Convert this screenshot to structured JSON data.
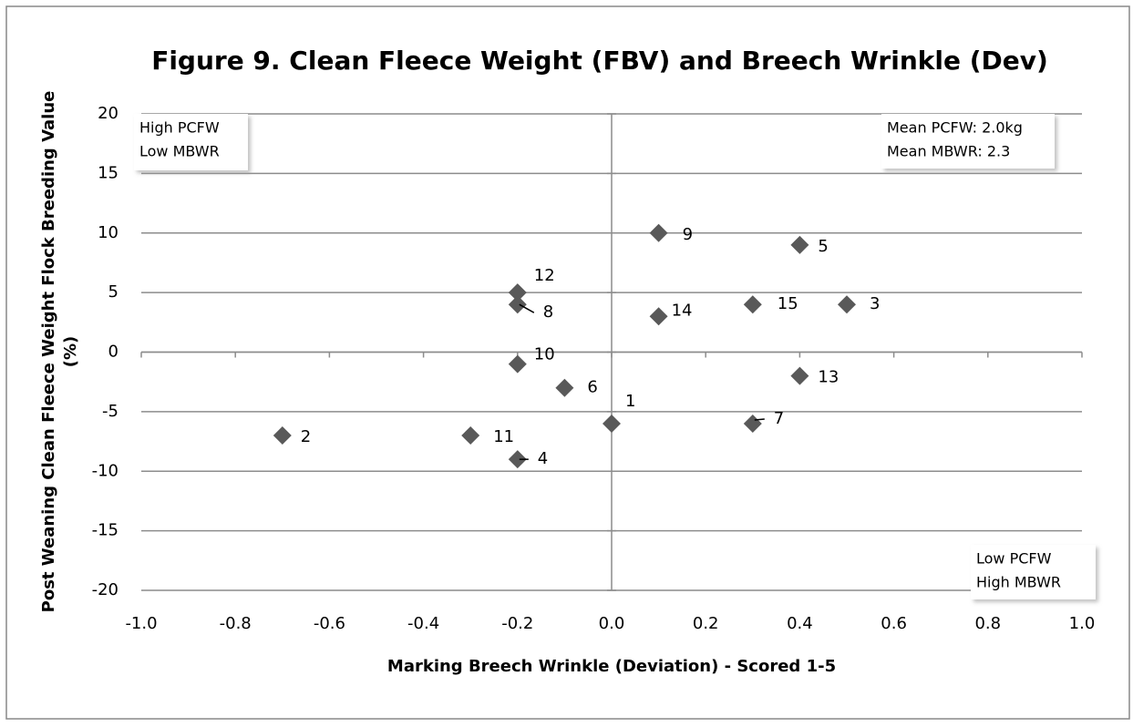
{
  "chart_data": {
    "type": "scatter",
    "title": "Figure 9. Clean Fleece Weight (FBV) and Breech Wrinkle (Dev)",
    "x_label": "Marking Breech Wrinkle (Deviation) - Scored 1-5",
    "y_label": [
      "Post Weaning Clean Fleece Weight  Flock Breeding Value",
      "(%)"
    ],
    "color": "#595959",
    "x": [
      0.0,
      -0.7,
      0.5,
      -0.2,
      0.4,
      -0.1,
      0.3,
      -0.2,
      0.1,
      -0.2,
      -0.3,
      -0.2,
      0.4,
      0.1,
      0.3
    ],
    "values": [
      -6,
      -7,
      4,
      -9,
      9,
      -3,
      -6,
      4,
      10,
      -1,
      -7,
      5,
      -2,
      3,
      4
    ],
    "point_labels": [
      "1",
      "2",
      "3",
      "4",
      "5",
      "6",
      "7",
      "8",
      "9",
      "10",
      "11",
      "12",
      "13",
      "14",
      "15"
    ],
    "xlim": [
      -1.0,
      1.0
    ],
    "xticks": [
      {
        "value": -1.0,
        "label": "-1.0"
      },
      {
        "value": -0.8,
        "label": "-0.8"
      },
      {
        "value": -0.6,
        "label": "-0.6"
      },
      {
        "value": -0.4,
        "label": "-0.4"
      },
      {
        "value": -0.2,
        "label": "-0.2"
      },
      {
        "value": 0.0,
        "label": "0.0"
      },
      {
        "value": 0.2,
        "label": "0.2"
      },
      {
        "value": 0.4,
        "label": "0.4"
      },
      {
        "value": 0.6,
        "label": "0.6"
      },
      {
        "value": 0.8,
        "label": "0.8"
      },
      {
        "value": 1.0,
        "label": "1.0"
      }
    ],
    "ylim": [
      -20,
      20
    ],
    "yticks": [
      20,
      15,
      10,
      5,
      0,
      -5,
      -10,
      -15,
      -20
    ],
    "grid": true,
    "annotations": [
      {
        "lines": [
          "High PCFW",
          "Low MBWR"
        ]
      },
      {
        "lines": [
          "Mean PCFW: 2.0kg",
          "Mean MBWR: 2.3"
        ]
      },
      {
        "lines": [
          "Low PCFW",
          "High MBWR"
        ]
      }
    ]
  }
}
